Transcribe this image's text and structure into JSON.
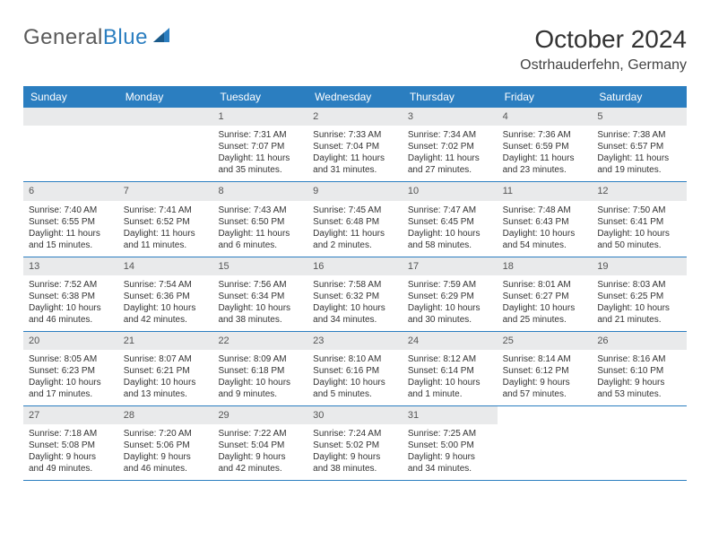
{
  "logo": {
    "part1": "General",
    "part2": "Blue"
  },
  "title": "October 2024",
  "location": "Ostrhauderfehn, Germany",
  "colors": {
    "header_bg": "#2b7ec0",
    "daynum_bg": "#e9eaeb",
    "border": "#2b7ec0",
    "text": "#333333"
  },
  "dayNames": [
    "Sunday",
    "Monday",
    "Tuesday",
    "Wednesday",
    "Thursday",
    "Friday",
    "Saturday"
  ],
  "startOffset": 2,
  "days": [
    {
      "n": 1,
      "sr": "7:31 AM",
      "ss": "7:07 PM",
      "dl": "11 hours and 35 minutes."
    },
    {
      "n": 2,
      "sr": "7:33 AM",
      "ss": "7:04 PM",
      "dl": "11 hours and 31 minutes."
    },
    {
      "n": 3,
      "sr": "7:34 AM",
      "ss": "7:02 PM",
      "dl": "11 hours and 27 minutes."
    },
    {
      "n": 4,
      "sr": "7:36 AM",
      "ss": "6:59 PM",
      "dl": "11 hours and 23 minutes."
    },
    {
      "n": 5,
      "sr": "7:38 AM",
      "ss": "6:57 PM",
      "dl": "11 hours and 19 minutes."
    },
    {
      "n": 6,
      "sr": "7:40 AM",
      "ss": "6:55 PM",
      "dl": "11 hours and 15 minutes."
    },
    {
      "n": 7,
      "sr": "7:41 AM",
      "ss": "6:52 PM",
      "dl": "11 hours and 11 minutes."
    },
    {
      "n": 8,
      "sr": "7:43 AM",
      "ss": "6:50 PM",
      "dl": "11 hours and 6 minutes."
    },
    {
      "n": 9,
      "sr": "7:45 AM",
      "ss": "6:48 PM",
      "dl": "11 hours and 2 minutes."
    },
    {
      "n": 10,
      "sr": "7:47 AM",
      "ss": "6:45 PM",
      "dl": "10 hours and 58 minutes."
    },
    {
      "n": 11,
      "sr": "7:48 AM",
      "ss": "6:43 PM",
      "dl": "10 hours and 54 minutes."
    },
    {
      "n": 12,
      "sr": "7:50 AM",
      "ss": "6:41 PM",
      "dl": "10 hours and 50 minutes."
    },
    {
      "n": 13,
      "sr": "7:52 AM",
      "ss": "6:38 PM",
      "dl": "10 hours and 46 minutes."
    },
    {
      "n": 14,
      "sr": "7:54 AM",
      "ss": "6:36 PM",
      "dl": "10 hours and 42 minutes."
    },
    {
      "n": 15,
      "sr": "7:56 AM",
      "ss": "6:34 PM",
      "dl": "10 hours and 38 minutes."
    },
    {
      "n": 16,
      "sr": "7:58 AM",
      "ss": "6:32 PM",
      "dl": "10 hours and 34 minutes."
    },
    {
      "n": 17,
      "sr": "7:59 AM",
      "ss": "6:29 PM",
      "dl": "10 hours and 30 minutes."
    },
    {
      "n": 18,
      "sr": "8:01 AM",
      "ss": "6:27 PM",
      "dl": "10 hours and 25 minutes."
    },
    {
      "n": 19,
      "sr": "8:03 AM",
      "ss": "6:25 PM",
      "dl": "10 hours and 21 minutes."
    },
    {
      "n": 20,
      "sr": "8:05 AM",
      "ss": "6:23 PM",
      "dl": "10 hours and 17 minutes."
    },
    {
      "n": 21,
      "sr": "8:07 AM",
      "ss": "6:21 PM",
      "dl": "10 hours and 13 minutes."
    },
    {
      "n": 22,
      "sr": "8:09 AM",
      "ss": "6:18 PM",
      "dl": "10 hours and 9 minutes."
    },
    {
      "n": 23,
      "sr": "8:10 AM",
      "ss": "6:16 PM",
      "dl": "10 hours and 5 minutes."
    },
    {
      "n": 24,
      "sr": "8:12 AM",
      "ss": "6:14 PM",
      "dl": "10 hours and 1 minute."
    },
    {
      "n": 25,
      "sr": "8:14 AM",
      "ss": "6:12 PM",
      "dl": "9 hours and 57 minutes."
    },
    {
      "n": 26,
      "sr": "8:16 AM",
      "ss": "6:10 PM",
      "dl": "9 hours and 53 minutes."
    },
    {
      "n": 27,
      "sr": "7:18 AM",
      "ss": "5:08 PM",
      "dl": "9 hours and 49 minutes."
    },
    {
      "n": 28,
      "sr": "7:20 AM",
      "ss": "5:06 PM",
      "dl": "9 hours and 46 minutes."
    },
    {
      "n": 29,
      "sr": "7:22 AM",
      "ss": "5:04 PM",
      "dl": "9 hours and 42 minutes."
    },
    {
      "n": 30,
      "sr": "7:24 AM",
      "ss": "5:02 PM",
      "dl": "9 hours and 38 minutes."
    },
    {
      "n": 31,
      "sr": "7:25 AM",
      "ss": "5:00 PM",
      "dl": "9 hours and 34 minutes."
    }
  ],
  "labels": {
    "sunrise": "Sunrise: ",
    "sunset": "Sunset: ",
    "daylight": "Daylight: "
  }
}
